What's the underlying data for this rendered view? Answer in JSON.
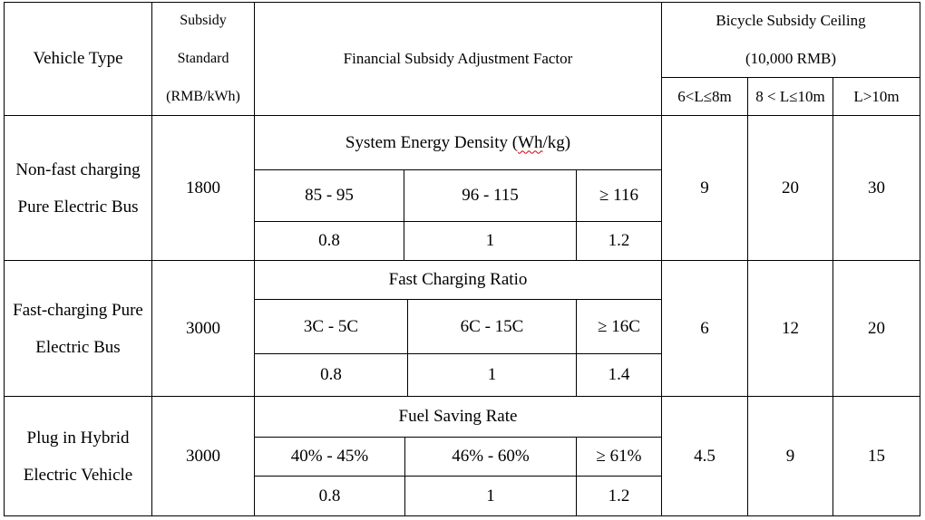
{
  "header": {
    "vehicle_type": "Vehicle Type",
    "subsidy_standard": [
      "Subsidy",
      "Standard",
      "(RMB/kWh)"
    ],
    "adjustment_factor": "Financial Subsidy Adjustment Factor",
    "ceiling_title": "Bicycle Subsidy Ceiling",
    "ceiling_unit": "(10,000 RMB)",
    "length_cols": [
      "6<L≤8m",
      "8 < L≤10m",
      "L>10m"
    ]
  },
  "rows": [
    {
      "vehicle": [
        "Non-fast charging",
        "Pure Electric Bus"
      ],
      "standard": "1800",
      "factor_title_pre": "System Energy Density (",
      "factor_title_ul": "Wh",
      "factor_title_post": "/kg)",
      "ranges": [
        "85 - 95",
        "96 - 115",
        "≥ 116"
      ],
      "factors": [
        "0.8",
        "1",
        "1.2"
      ],
      "ceilings": [
        "9",
        "20",
        "30"
      ]
    },
    {
      "vehicle": [
        "Fast-charging Pure",
        "Electric Bus"
      ],
      "standard": "3000",
      "factor_title": "Fast Charging Ratio",
      "ranges": [
        "3C - 5C",
        "6C - 15C",
        "≥ 16C"
      ],
      "factors": [
        "0.8",
        "1",
        "1.4"
      ],
      "ceilings": [
        "6",
        "12",
        "20"
      ]
    },
    {
      "vehicle": [
        "Plug in Hybrid",
        "Electric Vehicle"
      ],
      "standard": "3000",
      "factor_title": "Fuel Saving Rate",
      "ranges": [
        "40% - 45%",
        "46% - 60%",
        "≥ 61%"
      ],
      "factors": [
        "0.8",
        "1",
        "1.2"
      ],
      "ceilings": [
        "4.5",
        "9",
        "15"
      ]
    }
  ]
}
